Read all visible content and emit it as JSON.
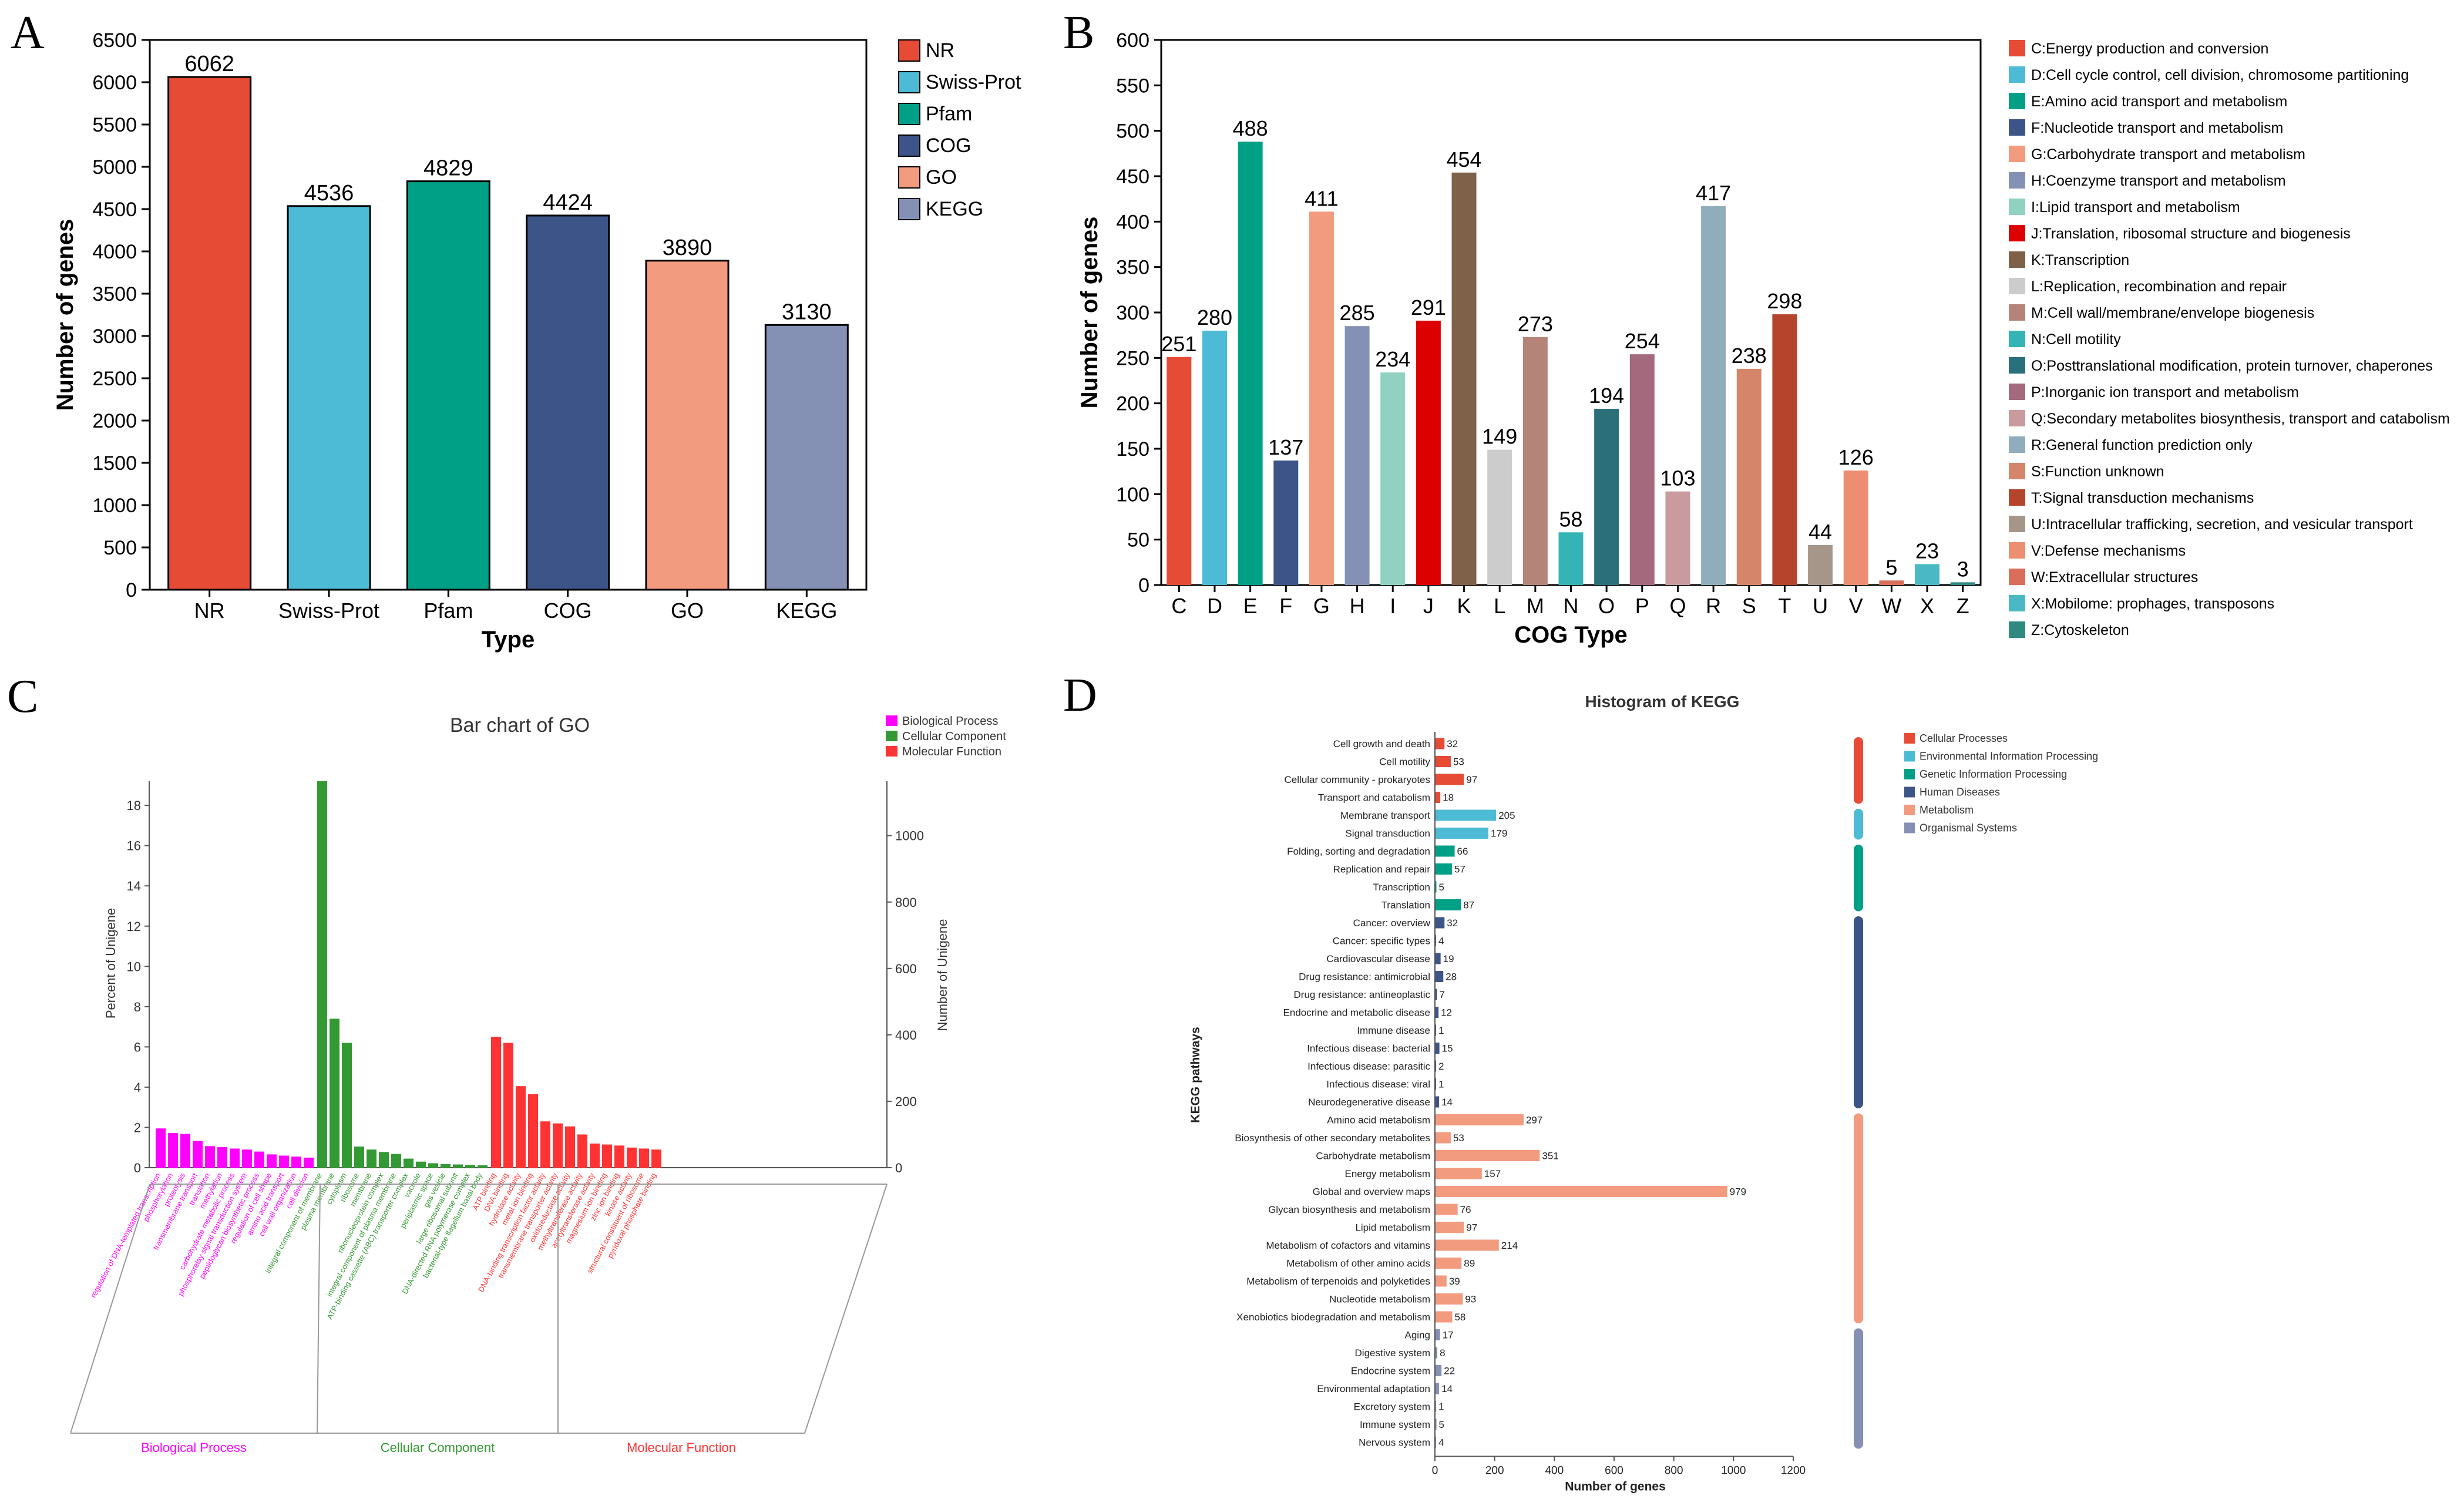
{
  "panels": {
    "a": "A",
    "b": "B",
    "c": "C",
    "d": "D"
  },
  "chart_data": [
    {
      "id": "A",
      "type": "bar",
      "title": "",
      "xlabel": "Type",
      "ylabel": "Number of genes",
      "ylim": [
        0,
        6500
      ],
      "yticks": [
        0,
        500,
        1000,
        1500,
        2000,
        2500,
        3000,
        3500,
        4000,
        4500,
        5000,
        5500,
        6000,
        6500
      ],
      "categories": [
        "NR",
        "Swiss-Prot",
        "Pfam",
        "COG",
        "GO",
        "KEGG"
      ],
      "values": [
        6062,
        4536,
        4829,
        4424,
        3890,
        3130
      ],
      "colors": [
        "#e64b35",
        "#4dbbd5",
        "#00a087",
        "#3c5488",
        "#f39b7f",
        "#8491b4"
      ],
      "legend": [
        "NR",
        "Swiss-Prot",
        "Pfam",
        "COG",
        "GO",
        "KEGG"
      ],
      "legend_position": "right"
    },
    {
      "id": "B",
      "type": "bar",
      "title": "",
      "xlabel": "COG Type",
      "ylabel": "Number of genes",
      "ylim": [
        0,
        600
      ],
      "yticks": [
        0,
        50,
        100,
        150,
        200,
        250,
        300,
        350,
        400,
        450,
        500,
        550,
        600
      ],
      "categories": [
        "C",
        "D",
        "E",
        "F",
        "G",
        "H",
        "I",
        "J",
        "K",
        "L",
        "M",
        "N",
        "O",
        "P",
        "Q",
        "R",
        "S",
        "T",
        "U",
        "V",
        "W",
        "X",
        "Z"
      ],
      "values": [
        251,
        280,
        488,
        137,
        411,
        285,
        234,
        291,
        454,
        149,
        273,
        58,
        194,
        254,
        103,
        417,
        238,
        298,
        44,
        126,
        5,
        23,
        3
      ],
      "colors": [
        "#e64b35",
        "#4dbbd5",
        "#00a087",
        "#3c5488",
        "#f39b7f",
        "#8491b4",
        "#91d1c2",
        "#dc0000",
        "#7e6148",
        "#cccccc",
        "#b48478",
        "#34b4b4",
        "#2a6f7a",
        "#a5697e",
        "#c99a9e",
        "#8fadba",
        "#d4856a",
        "#b5442c",
        "#a69689",
        "#ed8e73",
        "#d96e5a",
        "#4bb8c6",
        "#2e8a80"
      ],
      "legend": [
        "C:Energy production and conversion",
        "D:Cell cycle control, cell division, chromosome partitioning",
        "E:Amino acid transport and metabolism",
        "F:Nucleotide transport and metabolism",
        "G:Carbohydrate transport and metabolism",
        "H:Coenzyme transport and metabolism",
        "I:Lipid transport and metabolism",
        "J:Translation, ribosomal structure and biogenesis",
        "K:Transcription",
        "L:Replication, recombination and repair",
        "M:Cell wall/membrane/envelope biogenesis",
        "N:Cell motility",
        "O:Posttranslational modification, protein turnover, chaperones",
        "P:Inorganic ion transport and metabolism",
        "Q:Secondary metabolites biosynthesis, transport and catabolism",
        "R:General function prediction only",
        "S:Function unknown",
        "T:Signal transduction mechanisms",
        "U:Intracellular trafficking, secretion, and vesicular transport",
        "V:Defense mechanisms",
        "W:Extracellular structures",
        "X:Mobilome: prophages, transposons",
        "Z:Cytoskeleton"
      ],
      "legend_position": "right"
    },
    {
      "id": "C",
      "type": "bar",
      "title": "Bar chart of GO",
      "ylabel": "Percent of Unigene",
      "y2label": "Number of Unigene",
      "ylim": [
        0,
        19.2
      ],
      "yticks": [
        0,
        2,
        4,
        6,
        8,
        10,
        12,
        14,
        16,
        18
      ],
      "y2lim": [
        0,
        1164
      ],
      "y2ticks": [
        0,
        200,
        400,
        600,
        800,
        1000
      ],
      "legend": [
        {
          "name": "Biological Process",
          "color": "#ff00ff"
        },
        {
          "name": "Cellular Component",
          "color": "#339933"
        },
        {
          "name": "Molecular Function",
          "color": "#ff3333"
        }
      ],
      "legend_position": "top-right",
      "series": [
        {
          "name": "Biological Process",
          "color": "#ff00ff",
          "categories": [
            "regulation of DNA-templated transcription",
            "phosphorylation",
            "proteolysis",
            "transmembrane transport",
            "translation",
            "methylation",
            "carbohydrate metabolic process",
            "phosphorelay signal transduction system",
            "peptidoglycan biosynthetic process",
            "regulation of cell shape",
            "amino acid transport",
            "cell wall organization",
            "cell division"
          ],
          "values": [
            1.95,
            1.72,
            1.68,
            1.33,
            1.07,
            1.02,
            0.95,
            0.9,
            0.8,
            0.66,
            0.6,
            0.55,
            0.5
          ]
        },
        {
          "name": "Cellular Component",
          "color": "#339933",
          "categories": [
            "integral component of membrane",
            "plasma membrane",
            "cytoplasm",
            "ribosome",
            "membrane",
            "ribonucleoprotein complex",
            "integral component of plasma membrane",
            "ATP-binding cassette (ABC) transporter complex",
            "vacuole",
            "periplasmic space",
            "gas vesicle",
            "large ribosomal subunit",
            "DNA-directed RNA polymerase complex",
            "bacterial-type flagellum basal body"
          ],
          "values": [
            19.2,
            7.4,
            6.2,
            1.05,
            0.9,
            0.78,
            0.68,
            0.45,
            0.3,
            0.22,
            0.18,
            0.16,
            0.14,
            0.12
          ]
        },
        {
          "name": "Molecular Function",
          "color": "#ff3333",
          "categories": [
            "ATP binding",
            "DNA binding",
            "hydrolase activity",
            "metal ion binding",
            "DNA-binding transcription factor activity",
            "transmembrane transporter activity",
            "oxidoreductase activity",
            "methyltransferase activity",
            "acetyltransferase activity",
            "magnesium ion binding",
            "zinc ion binding",
            "kinase activity",
            "structural constituent of ribosome",
            "pyridoxal phosphate binding"
          ],
          "values": [
            6.5,
            6.2,
            4.05,
            3.65,
            2.3,
            2.2,
            2.05,
            1.65,
            1.2,
            1.15,
            1.1,
            1.0,
            0.95,
            0.9
          ]
        }
      ],
      "group_labels": [
        "Biological Process",
        "Cellular Component",
        "Molecular Function"
      ]
    },
    {
      "id": "D",
      "type": "bar",
      "orientation": "horizontal",
      "title": "Histogram of KEGG",
      "xlabel": "Number of genes",
      "ylabel": "KEGG pathways",
      "xlim": [
        0,
        1200
      ],
      "xticks": [
        0,
        200,
        400,
        600,
        800,
        1000,
        1200
      ],
      "legend": [
        {
          "name": "Cellular Processes",
          "color": "#e64b35"
        },
        {
          "name": "Environmental Information Processing",
          "color": "#4dbbd5"
        },
        {
          "name": "Genetic Information Processing",
          "color": "#00a087"
        },
        {
          "name": "Human Diseases",
          "color": "#3c5488"
        },
        {
          "name": "Metabolism",
          "color": "#f39b7f"
        },
        {
          "name": "Organismal Systems",
          "color": "#8491b4"
        }
      ],
      "legend_position": "top-right",
      "series": [
        {
          "name": "Cellular Processes",
          "color": "#e64b35",
          "categories": [
            "Cell growth and death",
            "Cell motility",
            "Cellular community - prokaryotes",
            "Transport and catabolism"
          ],
          "values": [
            32,
            53,
            97,
            18
          ]
        },
        {
          "name": "Environmental Information Processing",
          "color": "#4dbbd5",
          "categories": [
            "Membrane transport",
            "Signal transduction"
          ],
          "values": [
            205,
            179
          ]
        },
        {
          "name": "Genetic Information Processing",
          "color": "#00a087",
          "categories": [
            "Folding, sorting and degradation",
            "Replication and repair",
            "Transcription",
            "Translation"
          ],
          "values": [
            66,
            57,
            5,
            87
          ]
        },
        {
          "name": "Human Diseases",
          "color": "#3c5488",
          "categories": [
            "Cancer: overview",
            "Cancer: specific types",
            "Cardiovascular disease",
            "Drug resistance: antimicrobial",
            "Drug resistance: antineoplastic",
            "Endocrine and metabolic disease",
            "Immune disease",
            "Infectious disease: bacterial",
            "Infectious disease: parasitic",
            "Infectious disease: viral",
            "Neurodegenerative disease"
          ],
          "values": [
            32,
            4,
            19,
            28,
            7,
            12,
            1,
            15,
            2,
            1,
            14
          ]
        },
        {
          "name": "Metabolism",
          "color": "#f39b7f",
          "categories": [
            "Amino acid metabolism",
            "Biosynthesis of other secondary metabolites",
            "Carbohydrate metabolism",
            "Energy metabolism",
            "Global and overview maps",
            "Glycan biosynthesis and metabolism",
            "Lipid metabolism",
            "Metabolism of cofactors and vitamins",
            "Metabolism of other amino acids",
            "Metabolism of terpenoids and polyketides",
            "Nucleotide metabolism",
            "Xenobiotics biodegradation and metabolism"
          ],
          "values": [
            297,
            53,
            351,
            157,
            979,
            76,
            97,
            214,
            89,
            39,
            93,
            58
          ]
        },
        {
          "name": "Organismal Systems",
          "color": "#8491b4",
          "categories": [
            "Aging",
            "Digestive system",
            "Endocrine system",
            "Environmental adaptation",
            "Excretory system",
            "Immune system",
            "Nervous system"
          ],
          "values": [
            17,
            8,
            22,
            14,
            1,
            5,
            4
          ]
        }
      ]
    }
  ]
}
